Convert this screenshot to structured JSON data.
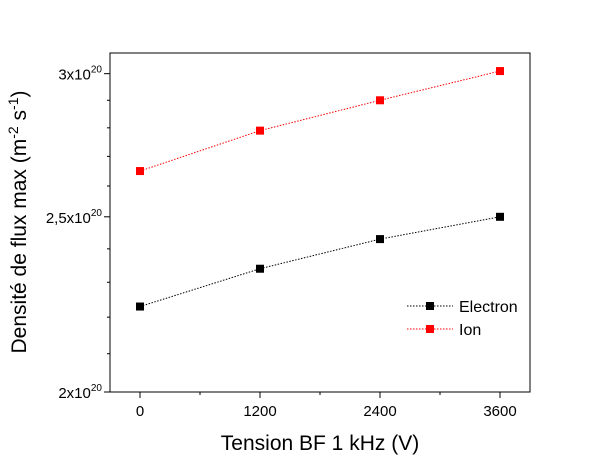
{
  "chart_data": {
    "type": "line",
    "xlabel": "Tension BF 1 kHz (V)",
    "ylabel": "Densité de flux max (m-2 s-1)",
    "ylabel_parts": {
      "main": "Densité de flux max (m",
      "sup1": "-2",
      "mid": " s",
      "sup2": "-1",
      "end": ")"
    },
    "xlim": [
      -300,
      3900
    ],
    "ylim": [
      2e+20,
      3.08e+20
    ],
    "y_scale": "log",
    "x_ticks": [
      0,
      1200,
      2400,
      3600
    ],
    "x_tick_labels": [
      "0",
      "1200",
      "2400",
      "3600"
    ],
    "y_ticks": [
      {
        "value": 2e+20,
        "mantissa": "2",
        "exp": "20"
      },
      {
        "value": 2.5e+20,
        "mantissa": "2,5",
        "exp": "20"
      },
      {
        "value": 3e+20,
        "mantissa": "3",
        "exp": "20"
      }
    ],
    "y_minor_ticks": [
      2.1e+20,
      2.2e+20,
      2.3e+20,
      2.4e+20,
      2.6e+20,
      2.7e+20,
      2.8e+20,
      2.9e+20
    ],
    "legend_position": "lower-right",
    "series": [
      {
        "name": "Electron",
        "color": "#000000",
        "x": [
          0,
          1200,
          2400,
          3600
        ],
        "y": [
          2.23e+20,
          2.34e+20,
          2.43e+20,
          2.5e+20
        ]
      },
      {
        "name": "Ion",
        "color": "#ff0000",
        "x": [
          0,
          1200,
          2400,
          3600
        ],
        "y": [
          2.65e+20,
          2.79e+20,
          2.9e+20,
          3.01e+20
        ]
      }
    ]
  }
}
